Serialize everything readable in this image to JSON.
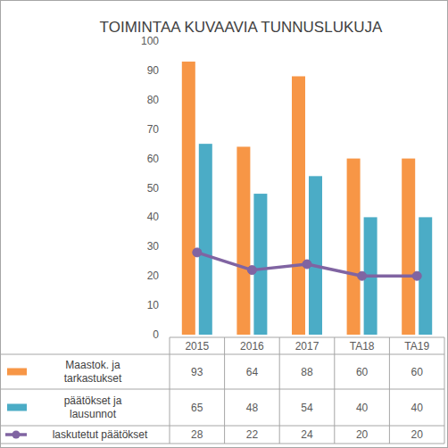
{
  "chart_data": {
    "type": "bar",
    "title": "TOIMINTAA KUVAAVIA TUNNUSLUKUJA",
    "categories": [
      "2015",
      "2016",
      "2017",
      "TA18",
      "TA19"
    ],
    "series": [
      {
        "name": "Maastok. ja tarkastukset",
        "color": "#F79646",
        "values": [
          93,
          64,
          88,
          60,
          60
        ]
      },
      {
        "name": "päätökset ja lausunnot",
        "color": "#4BACC6",
        "values": [
          65,
          48,
          54,
          40,
          40
        ]
      },
      {
        "name": "laskutetut päätökset",
        "color": "#8064A2",
        "type": "line",
        "marker": "circle",
        "values": [
          28,
          22,
          24,
          20,
          20
        ]
      }
    ],
    "ylim": [
      0,
      100
    ],
    "yticks": [
      0,
      10,
      20,
      30,
      40,
      50,
      60,
      70,
      80,
      90,
      100
    ],
    "grid": false
  }
}
